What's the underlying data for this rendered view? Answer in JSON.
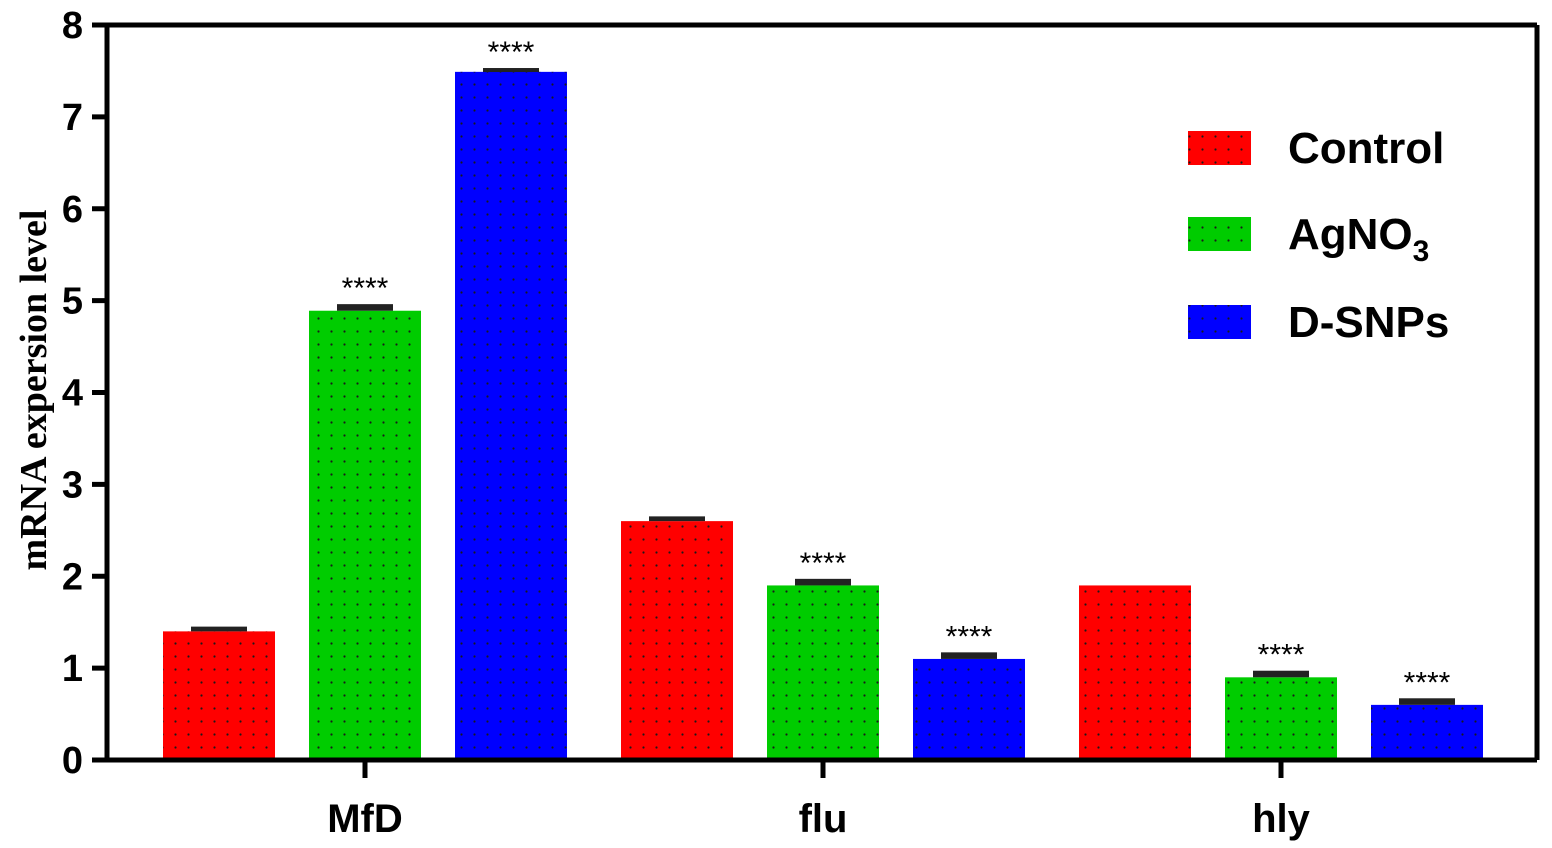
{
  "chart_data": {
    "type": "bar",
    "categories": [
      "MfD",
      "flu",
      "hly"
    ],
    "ylabel": "mRNA expersion level",
    "xlabel": "",
    "ylim": [
      0,
      8
    ],
    "yticks": [
      "0",
      "1",
      "2",
      "3",
      "4",
      "5",
      "6",
      "7",
      "8"
    ],
    "legend_position": "top-right",
    "significance_marker": "****",
    "series": [
      {
        "name": "Control",
        "color": "#ff0000",
        "values": [
          1.4,
          2.6,
          1.9
        ],
        "error": [
          0.03,
          0.03,
          0.0
        ],
        "significance": [
          "",
          "",
          ""
        ]
      },
      {
        "name": "AgNO",
        "name_subscript": "3",
        "color": "#00cc00",
        "values": [
          4.89,
          1.9,
          0.9
        ],
        "error": [
          0.05,
          0.05,
          0.05
        ],
        "significance": [
          "****",
          "****",
          "****"
        ]
      },
      {
        "name": "D-SNPs",
        "color": "#0000ff",
        "values": [
          7.49,
          1.1,
          0.6
        ],
        "error": [
          0.02,
          0.05,
          0.05
        ],
        "significance": [
          "****",
          "****",
          "****"
        ]
      }
    ]
  }
}
